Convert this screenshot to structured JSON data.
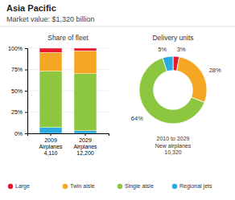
{
  "title": "Asia Pacific",
  "subtitle": "Market value: $1,320 billion",
  "chart_data": [
    {
      "type": "bar",
      "title": "Share of fleet",
      "categories": [
        "2009\nAirplanes\n4,110",
        "2029\nAirplanes\n12,200"
      ],
      "series": [
        {
          "name": "Regional jets",
          "color": "#29abe2",
          "values": [
            7,
            3
          ]
        },
        {
          "name": "Single aisle",
          "color": "#8dc63f",
          "values": [
            66,
            67
          ]
        },
        {
          "name": "Twin aisle",
          "color": "#f5a623",
          "values": [
            22,
            27
          ]
        },
        {
          "name": "Large",
          "color": "#e8192c",
          "values": [
            5,
            3
          ]
        }
      ],
      "stacked": true,
      "ylim": [
        0,
        100
      ],
      "yticks": [
        {
          "value": 0,
          "label": "0%"
        },
        {
          "value": 25,
          "label": "25%"
        },
        {
          "value": 50,
          "label": "50%"
        },
        {
          "value": 75,
          "label": "75%"
        },
        {
          "value": 100,
          "label": "100%"
        }
      ],
      "grid": true,
      "legend": "bottom"
    },
    {
      "type": "pie",
      "title": "Delivery units",
      "values": [
        3,
        28,
        64,
        5
      ],
      "colors": [
        "#e8192c",
        "#f5a623",
        "#8dc63f",
        "#29abe2"
      ],
      "data_labels": true,
      "value_labels": [
        "3%",
        "28%",
        "64%",
        "5%"
      ],
      "annotations": [
        "2010 to 2029\nNew airplanes\n10,320"
      ]
    }
  ]
}
